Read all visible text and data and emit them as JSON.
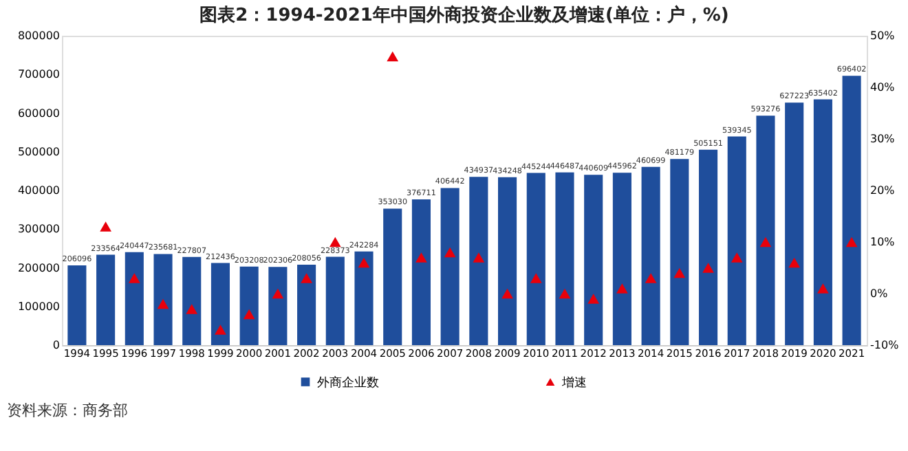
{
  "chart_data": {
    "type": "bar",
    "title": "图表2：1994-2021年中国外商投资企业数及增速(单位：户，%)",
    "categories": [
      "1994",
      "1995",
      "1996",
      "1997",
      "1998",
      "1999",
      "2000",
      "2001",
      "2002",
      "2003",
      "2004",
      "2005",
      "2006",
      "2007",
      "2008",
      "2009",
      "2010",
      "2011",
      "2012",
      "2013",
      "2014",
      "2015",
      "2016",
      "2017",
      "2018",
      "2019",
      "2020",
      "2021"
    ],
    "series": [
      {
        "name": "外商企业数",
        "type": "bar",
        "color": "#1f4e9c",
        "values": [
          206096,
          233564,
          240447,
          235681,
          227807,
          212436,
          203208,
          202306,
          208056,
          228373,
          242284,
          353030,
          376711,
          406442,
          434937,
          434248,
          445244,
          446487,
          440609,
          445962,
          460699,
          481179,
          505151,
          539345,
          593276,
          627223,
          635402,
          696402
        ],
        "value_labels": [
          "206096",
          "233564",
          "240447",
          "235681",
          "227807",
          "212436",
          "203208",
          "202306",
          "208056",
          "228373",
          "242284",
          "353030",
          "376711",
          "406442",
          "434937",
          "434248",
          "445244",
          "446487",
          "440609",
          "445962",
          "460699",
          "481179",
          "505151",
          "539345",
          "593276",
          "627223",
          "635402",
          "696402"
        ]
      },
      {
        "name": "增速",
        "type": "scatter",
        "axis": "y2",
        "marker": "triangle",
        "color": "#e8000b",
        "values": [
          null,
          13,
          3,
          -2,
          -3,
          -7,
          -4,
          0,
          3,
          10,
          6,
          46,
          7,
          8,
          7,
          0,
          3,
          0,
          -1,
          1,
          3,
          4,
          5,
          7,
          10,
          6,
          1,
          10
        ]
      }
    ],
    "ylim": [
      0,
      800000
    ],
    "yticks": [
      0,
      100000,
      200000,
      300000,
      400000,
      500000,
      600000,
      700000,
      800000
    ],
    "y2lim": [
      -10,
      50
    ],
    "y2ticks": [
      {
        "value": -10,
        "label": "-10%"
      },
      {
        "value": 0,
        "label": "0%"
      },
      {
        "value": 10,
        "label": "10%"
      },
      {
        "value": 20,
        "label": "20%"
      },
      {
        "value": 30,
        "label": "30%"
      },
      {
        "value": 40,
        "label": "40%"
      },
      {
        "value": 50,
        "label": "50%"
      }
    ],
    "grid": false,
    "legend": "bottom",
    "annotations": [
      "资料来源：商务部"
    ]
  }
}
